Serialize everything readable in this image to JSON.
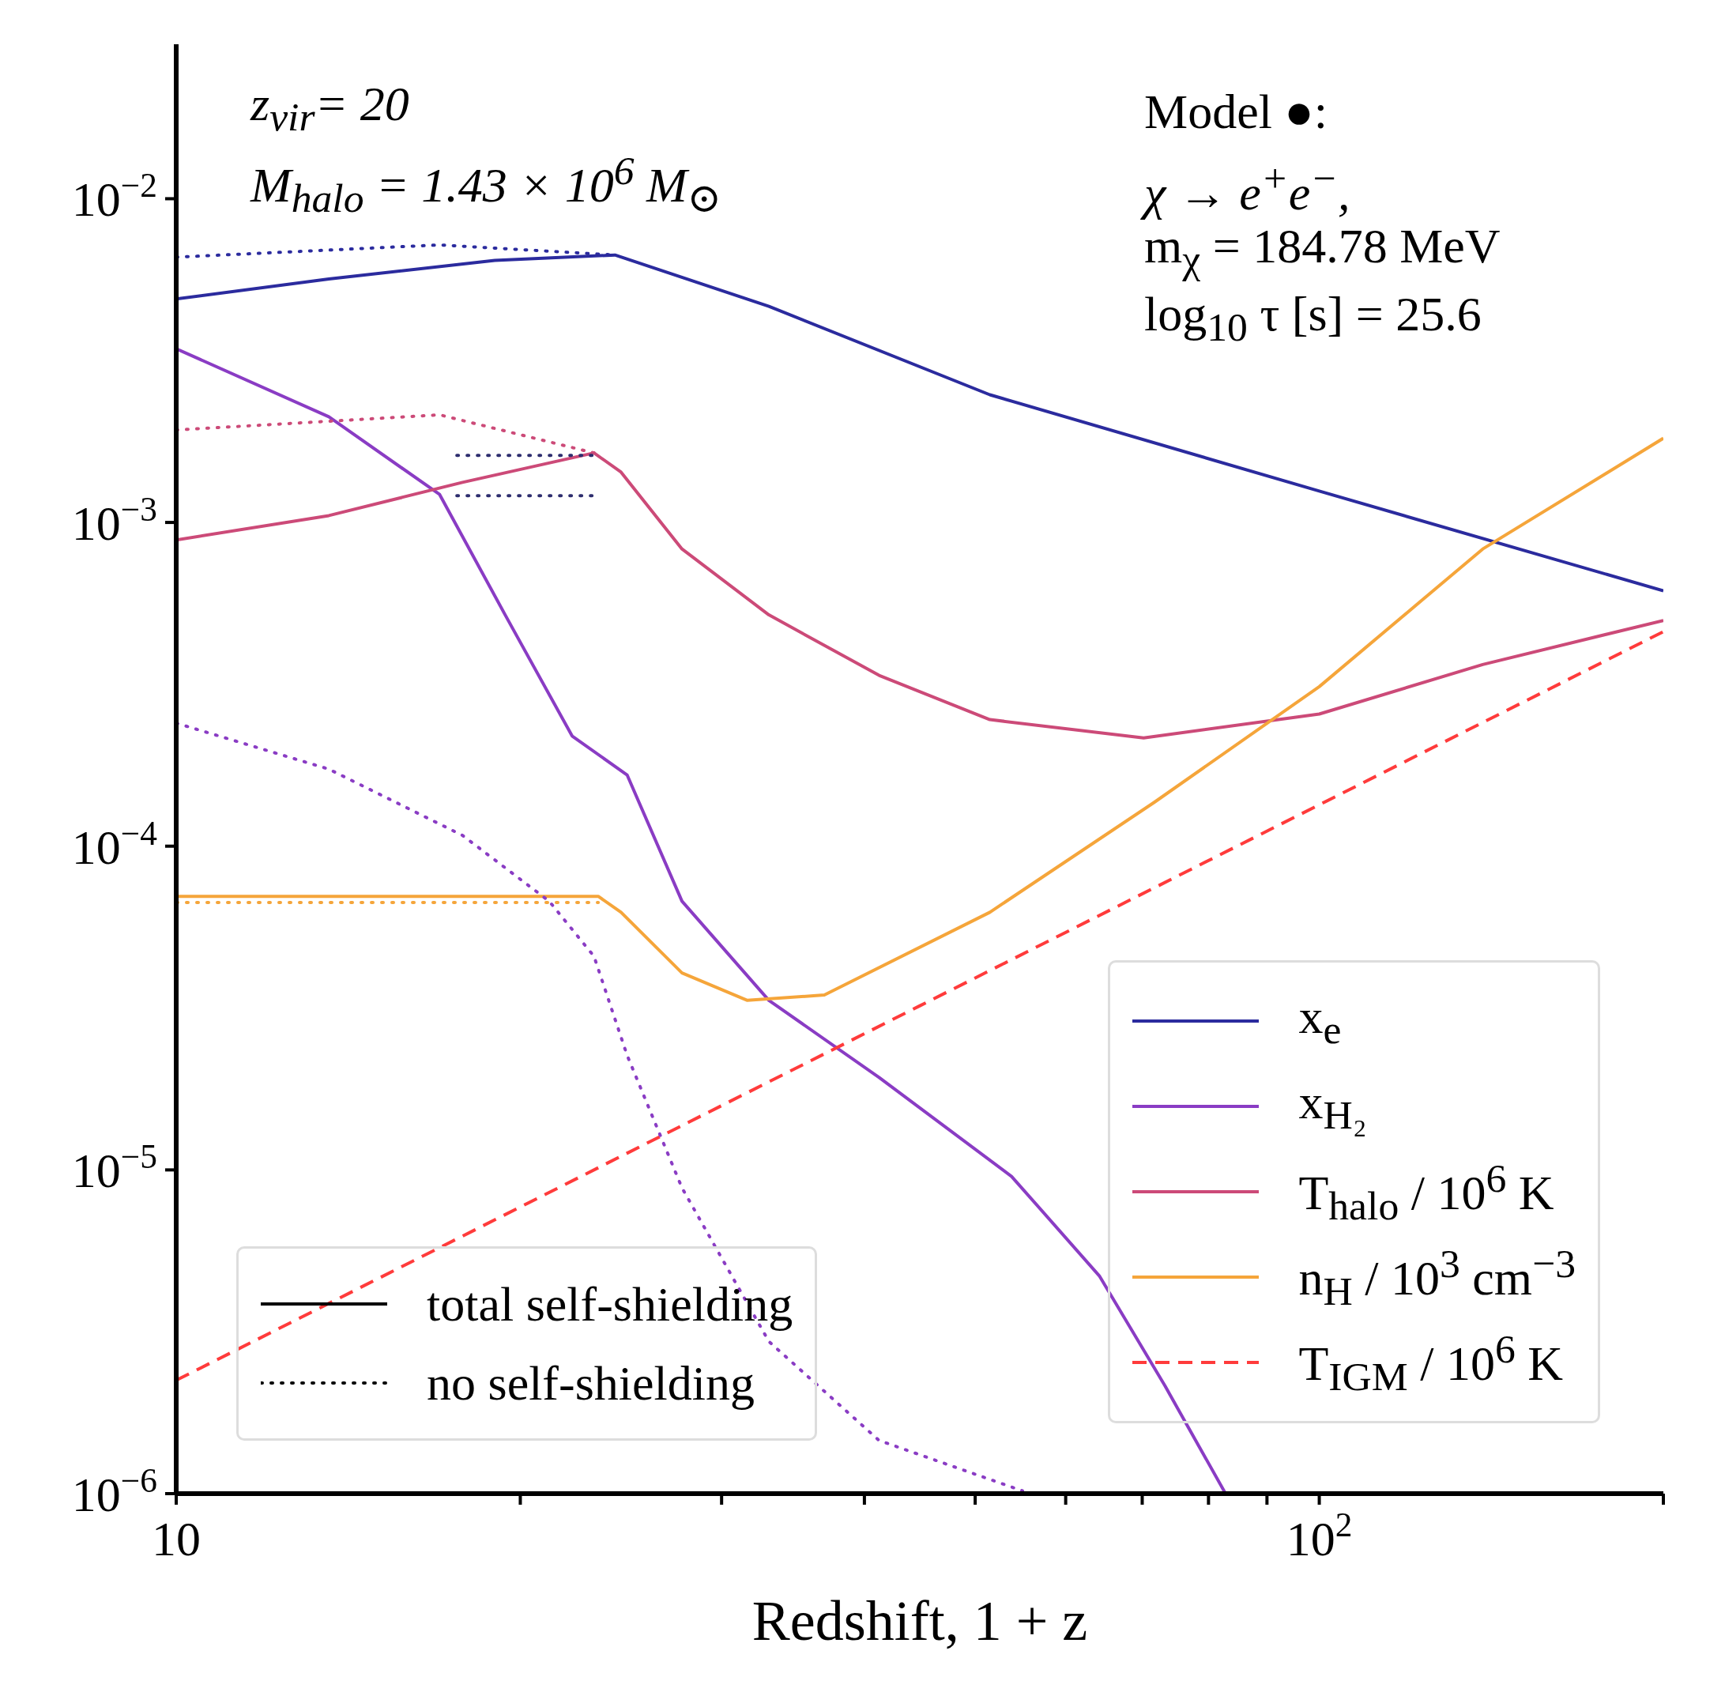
{
  "chart_data": {
    "type": "line",
    "xlabel": "Redshift, 1 + z",
    "log": "xy",
    "grid": false,
    "legend": "bottom right",
    "marker": "none",
    "xlim": [
      10,
      200
    ],
    "xticks": [
      {
        "value": 10,
        "label": "10"
      },
      {
        "value": 20,
        "label": null
      },
      {
        "value": 30,
        "label": null
      },
      {
        "value": 40,
        "label": null
      },
      {
        "value": 50,
        "label": null
      },
      {
        "value": 60,
        "label": null
      },
      {
        "value": 70,
        "label": null
      },
      {
        "value": 80,
        "label": null
      },
      {
        "value": 90,
        "label": null
      },
      {
        "value": 100,
        "label": "10$^{2}$"
      },
      {
        "value": 200,
        "label": null
      }
    ],
    "ylim": [
      1e-06,
      0.03
    ],
    "yticks": [
      {
        "value": 1e-06,
        "label": "10$^{−6}$"
      },
      {
        "value": 1e-05,
        "label": "10$^{−5}$"
      },
      {
        "value": 0.0001,
        "label": "10$^{−4}$"
      },
      {
        "value": 0.001,
        "label": "10$^{−3}$"
      },
      {
        "value": 0.01,
        "label": "10$^{−2}$"
      }
    ],
    "annotations": [
      "z$_{vir}$= 20",
      "M$_{halo}$ = 1.43 × 10$^{6}$ M$_{⊙}$",
      "Model ●:",
      "χ → e$^{+}$e$^{−}$,",
      "m$_{χ}$ = 184.78 MeV",
      "log$_{10}$ τ [s] = 25.6",
      "total self-shielding",
      "no self-shielding"
    ],
    "series": [
      {
        "name": "x$_{e}$",
        "color": "#2b2b9e",
        "line_style": "solid",
        "x": [
          10,
          13.6,
          19.0,
          24.2,
          33.0,
          51.5,
          100,
          200
        ],
        "values": [
          0.0049,
          0.00565,
          0.00645,
          0.0067,
          0.00465,
          0.00248,
          0.00125,
          0.000615
        ]
      },
      {
        "name": "x$_{H₂}$",
        "color": "#8a3cc4",
        "line_style": "solid",
        "x": [
          10,
          13.6,
          17.0,
          19.4,
          22.2,
          24.8,
          27.7,
          33.0,
          41.2,
          53.8,
          64.2,
          73.3,
          82.8
        ],
        "values": [
          0.00344,
          0.00212,
          0.00122,
          0.000518,
          0.000219,
          0.000166,
          6.76e-05,
          3.34e-05,
          1.93e-05,
          9.55e-06,
          4.71e-06,
          2.15e-06,
          1e-06
        ]
      },
      {
        "name": "T$_{halo}$ / 10$^{6}$ K",
        "color": "#cc4a78",
        "line_style": "solid",
        "x": [
          10,
          13.6,
          17.8,
          23.2,
          24.5,
          27.7,
          33.0,
          41.2,
          51.5,
          70.2,
          100,
          139,
          200
        ],
        "values": [
          0.000883,
          0.00105,
          0.00133,
          0.00164,
          0.00143,
          0.000828,
          0.000518,
          0.000337,
          0.000246,
          0.000216,
          0.000256,
          0.000364,
          0.000498
        ]
      },
      {
        "name": "n$_{H}$ / 10$^{3}$ cm$^{−3}$",
        "color": "#f5a53a",
        "line_style": "solid",
        "x": [
          10,
          23.4,
          24.5,
          27.7,
          31.6,
          36.9,
          51.5,
          71.8,
          100,
          139,
          200
        ],
        "values": [
          7e-05,
          7e-05,
          6.25e-05,
          4.06e-05,
          3.34e-05,
          3.47e-05,
          6.25e-05,
          0.000137,
          0.000311,
          0.000828,
          0.00182
        ]
      },
      {
        "name": "T$_{IGM}$ / 10$^{6}$ K",
        "color": "#ff3b3b",
        "line_style": "dashed",
        "x": [
          10,
          44.7,
          200
        ],
        "values": [
          2.24e-06,
          3.21e-05,
          0.00046
        ]
      },
      {
        "color": "#2b2b9e",
        "line_style": "dotted",
        "x": [
          10,
          17.0,
          24.2
        ],
        "values": [
          0.0066,
          0.0072,
          0.0067
        ]
      },
      {
        "color": "#8a3cc4",
        "line_style": "dotted",
        "x": [
          10,
          13.6,
          17.8,
          21.2,
          23.2,
          24.8,
          27.7,
          33.0,
          41.2,
          55.0
        ],
        "values": [
          0.00024,
          0.000173,
          0.000108,
          6.76e-05,
          4.57e-05,
          2.26e-05,
          8.8e-06,
          2.95e-06,
          1.46e-06,
          1.02e-06
        ]
      },
      {
        "color": "#cc4a78",
        "line_style": "dotted",
        "x": [
          10,
          17.0,
          23.2
        ],
        "values": [
          0.00193,
          0.00215,
          0.00164
        ]
      },
      {
        "color": "#f5a53a",
        "line_style": "dotted",
        "x": [
          10,
          23.4
        ],
        "values": [
          6.7e-05,
          6.7e-05
        ]
      },
      {
        "color": "#2d2d6e",
        "line_style": "dotted",
        "x": [
          17.6,
          23.4
        ],
        "values": [
          0.00161,
          0.00161
        ]
      },
      {
        "color": "#2d2d6e",
        "line_style": "dotted",
        "x": [
          17.6,
          23.4
        ],
        "values": [
          0.00121,
          0.00121
        ]
      }
    ]
  }
}
